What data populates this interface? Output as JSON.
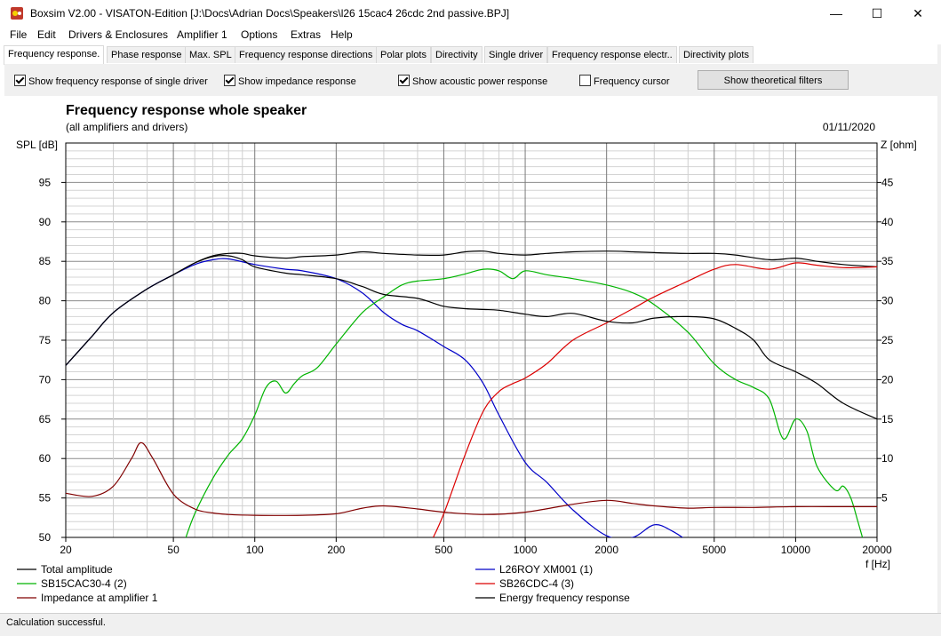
{
  "window": {
    "title": "Boxsim V2.00 - VISATON-Edition [J:\\Docs\\Adrian Docs\\Speakers\\l26 15cac4 26cdc 2nd passive.BPJ]",
    "minimize": "—",
    "maximize": "☐",
    "close": "✕"
  },
  "menu": [
    "File",
    "Edit",
    "Drivers & Enclosures",
    "Amplifier 1",
    "Options",
    "Extras",
    "Help"
  ],
  "tabs": [
    "Frequency response.",
    "Phase response",
    "Max. SPL",
    "Frequency response directions",
    "Polar plots",
    "Directivity",
    "Single driver",
    "Frequency response electr..",
    "Directivity plots"
  ],
  "options": {
    "single_driver": "Show frequency response of single driver",
    "impedance": "Show impedance response",
    "acoustic_power": "Show acoustic power response",
    "freq_cursor": "Frequency cursor",
    "theoretical_filters": "Show theoretical filters"
  },
  "status": "Calculation successful.",
  "chart_data": {
    "type": "line",
    "title": "Frequency response whole speaker",
    "subtitle": "(all amplifiers and drivers)",
    "date": "01/11/2020",
    "ylabel": "SPL [dB]",
    "y2label": "Z [ohm]",
    "xlabel": "f [Hz]",
    "xscale": "log",
    "xlim": [
      20,
      20000
    ],
    "ylim": [
      50,
      100
    ],
    "y2lim": [
      0,
      50
    ],
    "grid": true,
    "xticks": [
      20,
      50,
      100,
      200,
      500,
      1000,
      2000,
      5000,
      10000,
      20000
    ],
    "xtick_labels": [
      "20",
      "50",
      "100",
      "200",
      "500",
      "1000",
      "2000",
      "5000",
      "10000",
      "20000"
    ],
    "yticks": [
      50,
      55,
      60,
      65,
      70,
      75,
      80,
      85,
      90,
      95
    ],
    "y2ticks": [
      5,
      10,
      15,
      20,
      25,
      30,
      35,
      40,
      45
    ],
    "series": [
      {
        "name": "Total amplitude",
        "color": "#000000",
        "x": [
          20,
          25,
          30,
          40,
          50,
          60,
          70,
          80,
          90,
          100,
          130,
          150,
          200,
          250,
          300,
          400,
          500,
          600,
          700,
          800,
          1000,
          1200,
          1500,
          2000,
          2500,
          3000,
          4000,
          5000,
          6000,
          8000,
          10000,
          12000,
          15000,
          20000
        ],
        "y": [
          71.8,
          75.5,
          78.5,
          81.5,
          83.3,
          84.8,
          85.7,
          86.0,
          86.0,
          85.7,
          85.4,
          85.6,
          85.8,
          86.2,
          86.0,
          85.8,
          85.8,
          86.2,
          86.3,
          86.0,
          85.8,
          86.0,
          86.2,
          86.3,
          86.2,
          86.1,
          86.0,
          86.0,
          85.8,
          85.2,
          85.4,
          85.0,
          84.6,
          84.3
        ]
      },
      {
        "name": "L26ROY XM001 (1)",
        "color": "#0000c8",
        "x": [
          20,
          25,
          30,
          40,
          50,
          60,
          70,
          80,
          100,
          130,
          150,
          200,
          250,
          300,
          350,
          400,
          500,
          600,
          700,
          800,
          1000,
          1200,
          1500,
          2000,
          2500,
          3000,
          3500,
          4000
        ],
        "y": [
          71.8,
          75.5,
          78.5,
          81.5,
          83.3,
          84.6,
          85.2,
          85.3,
          84.6,
          84.0,
          83.8,
          82.8,
          81.0,
          78.5,
          77.0,
          76.2,
          74.2,
          72.5,
          69.5,
          65.5,
          59.5,
          57.0,
          53.5,
          50.2,
          50.0,
          51.6,
          50.8,
          49.5
        ]
      },
      {
        "name": "SB15CAC30-4 (2)",
        "color": "#00b400",
        "x": [
          55,
          60,
          70,
          80,
          90,
          100,
          110,
          120,
          130,
          140,
          150,
          170,
          200,
          250,
          300,
          350,
          400,
          500,
          600,
          700,
          800,
          900,
          1000,
          1200,
          1500,
          2000,
          2500,
          3000,
          4000,
          5000,
          6000,
          7000,
          8000,
          9000,
          10000,
          11000,
          12000,
          14000,
          15000,
          16000,
          17000,
          18000
        ],
        "y": [
          49.5,
          53.0,
          57.5,
          60.5,
          62.5,
          65.5,
          69.0,
          69.8,
          68.3,
          69.5,
          70.5,
          71.5,
          74.5,
          78.5,
          80.5,
          82.0,
          82.5,
          82.8,
          83.4,
          84.0,
          83.8,
          82.8,
          83.8,
          83.3,
          82.8,
          82.0,
          81.0,
          79.5,
          76.0,
          72.0,
          70.0,
          69.0,
          67.5,
          62.5,
          65.0,
          63.5,
          59.0,
          56.0,
          56.5,
          55.0,
          52.0,
          49.0
        ]
      },
      {
        "name": "SB26CDC-4 (3)",
        "color": "#dc0000",
        "x": [
          450,
          500,
          600,
          700,
          800,
          900,
          1000,
          1200,
          1500,
          2000,
          2500,
          3000,
          4000,
          5000,
          6000,
          8000,
          10000,
          12000,
          15000,
          20000
        ],
        "y": [
          49.5,
          53.0,
          60.5,
          66.0,
          68.5,
          69.5,
          70.2,
          72.0,
          75.0,
          77.2,
          79.0,
          80.5,
          82.5,
          84.0,
          84.6,
          84.0,
          84.8,
          84.5,
          84.2,
          84.3
        ]
      },
      {
        "name": "Impedance at amplifier 1",
        "color": "#800000",
        "axis": "y2",
        "x": [
          20,
          25,
          30,
          35,
          38,
          42,
          50,
          60,
          70,
          80,
          100,
          150,
          200,
          250,
          300,
          400,
          500,
          700,
          1000,
          1500,
          2000,
          2500,
          3000,
          4000,
          5000,
          7000,
          10000,
          15000,
          20000
        ],
        "y": [
          5.6,
          5.2,
          6.5,
          10.0,
          12.0,
          10.0,
          5.5,
          3.6,
          3.1,
          2.9,
          2.8,
          2.8,
          3.0,
          3.7,
          4.0,
          3.6,
          3.2,
          2.9,
          3.2,
          4.2,
          4.7,
          4.3,
          4.0,
          3.7,
          3.8,
          3.8,
          3.9,
          3.9,
          3.9
        ]
      },
      {
        "name": "Energy frequency response",
        "color": "#000000",
        "x": [
          20,
          25,
          30,
          40,
          50,
          60,
          70,
          80,
          90,
          100,
          130,
          150,
          200,
          250,
          300,
          400,
          500,
          600,
          700,
          800,
          1000,
          1200,
          1500,
          2000,
          2500,
          3000,
          4000,
          5000,
          6000,
          7000,
          8000,
          10000,
          12000,
          15000,
          20000
        ],
        "y": [
          71.8,
          75.5,
          78.5,
          81.5,
          83.3,
          84.8,
          85.6,
          85.7,
          85.2,
          84.3,
          83.5,
          83.3,
          82.8,
          81.8,
          80.8,
          80.3,
          79.3,
          79.0,
          78.9,
          78.8,
          78.3,
          78.0,
          78.4,
          77.4,
          77.2,
          77.8,
          78.0,
          77.7,
          76.5,
          75.0,
          72.5,
          71.0,
          69.5,
          67.0,
          65.0
        ]
      }
    ]
  }
}
